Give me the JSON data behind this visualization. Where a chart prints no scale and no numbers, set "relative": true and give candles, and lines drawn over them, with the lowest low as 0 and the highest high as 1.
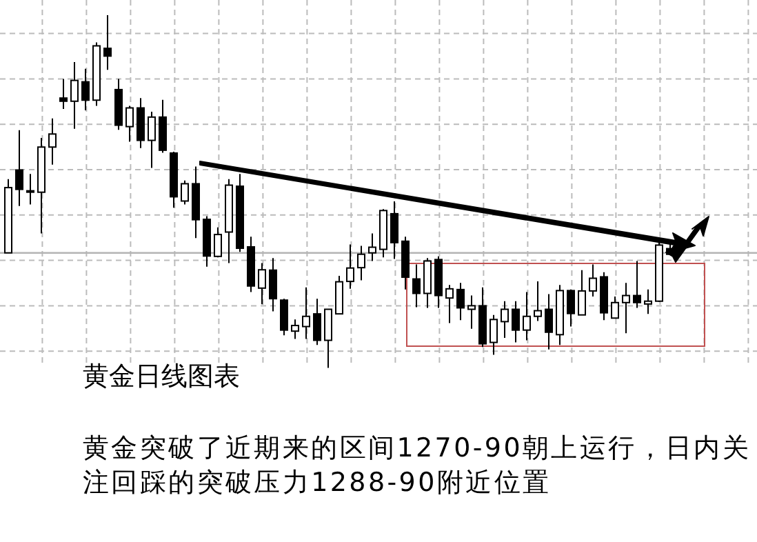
{
  "chart_data": {
    "type": "candlestick",
    "relative": true,
    "grid": true,
    "categories": [
      null,
      null,
      null,
      null,
      null,
      null,
      null,
      null,
      null,
      null,
      null,
      null,
      null,
      null,
      null,
      null,
      null,
      null,
      null,
      null,
      null,
      null,
      null,
      null,
      null,
      null,
      null,
      null,
      null,
      null,
      null,
      null,
      null,
      null,
      null,
      null,
      null,
      null,
      null,
      null,
      null,
      null,
      null,
      null,
      null,
      null,
      null,
      null,
      null,
      null,
      null,
      null,
      null,
      null,
      null,
      null,
      null,
      null,
      null,
      null,
      null
    ],
    "ohlc": [
      [
        0.326,
        0.535,
        0.326,
        0.511
      ],
      [
        0.561,
        0.674,
        0.459,
        0.506
      ],
      [
        0.502,
        0.55,
        0.463,
        0.499
      ],
      [
        0.498,
        0.652,
        0.381,
        0.626
      ],
      [
        0.626,
        0.707,
        0.576,
        0.663
      ],
      [
        0.765,
        0.819,
        0.734,
        0.756
      ],
      [
        0.756,
        0.867,
        0.678,
        0.815
      ],
      [
        0.811,
        0.848,
        0.73,
        0.759
      ],
      [
        0.759,
        0.923,
        0.743,
        0.913
      ],
      [
        0.906,
        1,
        0.845,
        0.884
      ],
      [
        0.789,
        0.819,
        0.675,
        0.688
      ],
      [
        0.684,
        0.743,
        0.641,
        0.737
      ],
      [
        0.737,
        0.765,
        0.623,
        0.645
      ],
      [
        0.645,
        0.726,
        0.567,
        0.711
      ],
      [
        0.711,
        0.76,
        0.61,
        0.617
      ],
      [
        0.609,
        0.613,
        0.454,
        0.485
      ],
      [
        0.473,
        0.531,
        0.463,
        0.522
      ],
      [
        0.522,
        0.571,
        0.368,
        0.42
      ],
      [
        0.421,
        0.43,
        0.287,
        0.317
      ],
      [
        0.316,
        0.398,
        0.313,
        0.378
      ],
      [
        0.385,
        0.535,
        0.297,
        0.518
      ],
      [
        0.515,
        0.55,
        0.329,
        0.339
      ],
      [
        0.343,
        0.372,
        0.215,
        0.232
      ],
      [
        0.226,
        0.297,
        0.18,
        0.278
      ],
      [
        0.277,
        0.311,
        0.16,
        0.196
      ],
      [
        0.192,
        0.196,
        0.092,
        0.107
      ],
      [
        0.104,
        0.137,
        0.082,
        0.12
      ],
      [
        0.117,
        0.228,
        0.082,
        0.146
      ],
      [
        0.153,
        0.196,
        0.065,
        0.078
      ],
      [
        0.078,
        0.166,
        0,
        0.166
      ],
      [
        0.153,
        0.261,
        0.153,
        0.244
      ],
      [
        0.245,
        0.35,
        0.224,
        0.283
      ],
      [
        0.284,
        0.346,
        0.248,
        0.322
      ],
      [
        0.326,
        0.381,
        0.303,
        0.342
      ],
      [
        0.336,
        0.45,
        0.313,
        0.446
      ],
      [
        0.437,
        0.472,
        0.309,
        0.355
      ],
      [
        0.359,
        0.372,
        0.222,
        0.257
      ],
      [
        0.252,
        0.293,
        0.172,
        0.211
      ],
      [
        0.211,
        0.311,
        0.17,
        0.303
      ],
      [
        0.307,
        0.316,
        0.17,
        0.205
      ],
      [
        0.198,
        0.235,
        0.127,
        0.224
      ],
      [
        0.222,
        0.241,
        0.135,
        0.17
      ],
      [
        0.166,
        0.205,
        0.111,
        0.176
      ],
      [
        0.176,
        0.228,
        0.059,
        0.068
      ],
      [
        0.072,
        0.15,
        0.037,
        0.137
      ],
      [
        0.131,
        0.189,
        0.085,
        0.166
      ],
      [
        0.166,
        0.189,
        0.072,
        0.107
      ],
      [
        0.107,
        0.215,
        0.078,
        0.146
      ],
      [
        0.146,
        0.245,
        0.133,
        0.162
      ],
      [
        0.166,
        0.209,
        0.052,
        0.101
      ],
      [
        0.094,
        0.235,
        0.065,
        0.219
      ],
      [
        0.219,
        0.222,
        0.117,
        0.154
      ],
      [
        0.15,
        0.277,
        0.15,
        0.218
      ],
      [
        0.218,
        0.293,
        0.202,
        0.254
      ],
      [
        0.258,
        0.271,
        0.135,
        0.156
      ],
      [
        0.141,
        0.202,
        0.141,
        0.185
      ],
      [
        0.185,
        0.241,
        0.098,
        0.205
      ],
      [
        0.205,
        0.303,
        0.17,
        0.185
      ],
      [
        0.181,
        0.222,
        0.153,
        0.189
      ],
      [
        0.189,
        0.369,
        0.187,
        0.348
      ],
      [
        0.338,
        0.356,
        0.322,
        0.322
      ]
    ],
    "ref_lines": [
      {
        "axis": "y",
        "value": 0.326,
        "color": "#b4b4b4"
      }
    ],
    "annotations": [
      "黄金日线图表",
      "黄金突破了近期来的区间1270-90朝上运行，日内关注回踩的突破压力1288-90附近位置"
    ]
  }
}
